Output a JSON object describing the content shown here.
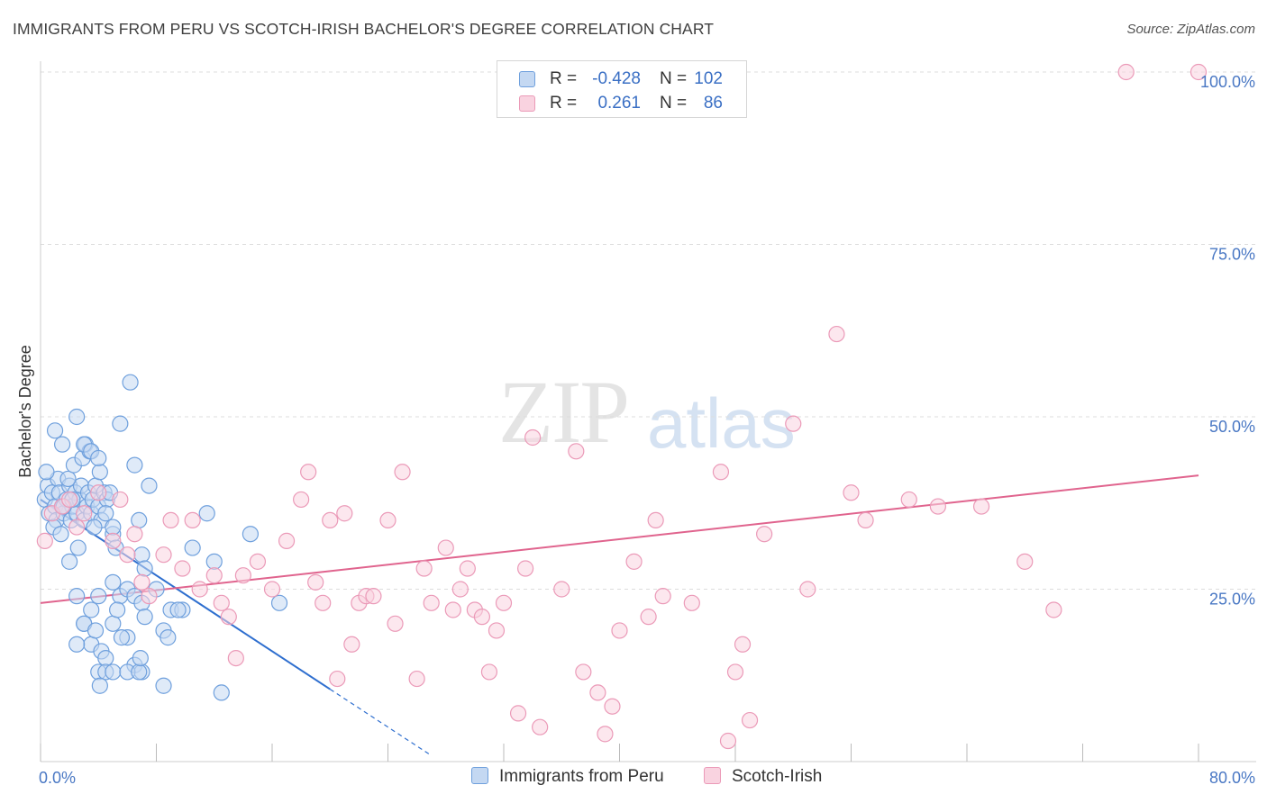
{
  "title": "IMMIGRANTS FROM PERU VS SCOTCH-IRISH BACHELOR'S DEGREE CORRELATION CHART",
  "source": "Source: ZipAtlas.com",
  "watermark": {
    "zip": "ZIP",
    "atlas": "atlas"
  },
  "colors": {
    "peru": "#6fa0dd",
    "peru_fill": "#c4d8f2",
    "peru_line": "#2f6fcf",
    "scotch": "#eb9ab8",
    "scotch_fill": "#f9d3e0",
    "scotch_line": "#e0648e",
    "tick": "#4a78c4",
    "grid": "#dddddd"
  },
  "legend": {
    "rows": [
      {
        "r_label": "R =",
        "r_value": "-0.428",
        "n_label": "N =",
        "n_value": "102"
      },
      {
        "r_label": "R =",
        "r_value": "0.261",
        "n_label": "N =",
        "n_value": "86"
      }
    ]
  },
  "bottom_legend": {
    "peru": "Immigrants from Peru",
    "scotch": "Scotch-Irish"
  },
  "chart_data": {
    "type": "scatter",
    "title": "IMMIGRANTS FROM PERU VS SCOTCH-IRISH BACHELOR'S DEGREE CORRELATION CHART",
    "xlabel": "",
    "ylabel": "Bachelor's Degree",
    "xlim": [
      0,
      80
    ],
    "ylim": [
      0,
      100
    ],
    "x_tick_labels": [
      {
        "value": 0,
        "label": "0.0%"
      },
      {
        "value": 80,
        "label": "80.0%"
      }
    ],
    "y_tick_labels": [
      {
        "value": 25,
        "label": "25.0%"
      },
      {
        "value": 50,
        "label": "50.0%"
      },
      {
        "value": 75,
        "label": "75.0%"
      },
      {
        "value": 100,
        "label": "100.0%"
      }
    ],
    "grid": true,
    "legend_position": "top-center",
    "series": [
      {
        "name": "Immigrants from Peru",
        "color": "#6fa0dd",
        "trend": {
          "x0": 0,
          "y0": 38,
          "x1": 20,
          "y1": 10.5,
          "dash_to_x": 27
        },
        "points": [
          [
            0.3,
            38
          ],
          [
            0.5,
            40
          ],
          [
            0.6,
            36
          ],
          [
            0.8,
            39
          ],
          [
            1.0,
            37
          ],
          [
            1.1,
            35
          ],
          [
            1.2,
            41
          ],
          [
            1.3,
            39
          ],
          [
            1.5,
            37
          ],
          [
            1.6,
            36
          ],
          [
            1.8,
            38
          ],
          [
            2.0,
            40
          ],
          [
            2.1,
            35
          ],
          [
            2.2,
            37
          ],
          [
            2.4,
            39
          ],
          [
            2.5,
            36
          ],
          [
            2.7,
            38
          ],
          [
            2.8,
            40
          ],
          [
            3.0,
            35
          ],
          [
            3.2,
            37
          ],
          [
            3.3,
            39
          ],
          [
            3.5,
            36
          ],
          [
            3.6,
            38
          ],
          [
            3.8,
            40
          ],
          [
            4.0,
            37
          ],
          [
            4.2,
            35
          ],
          [
            4.4,
            39
          ],
          [
            4.6,
            38
          ],
          [
            0.4,
            42
          ],
          [
            0.9,
            34
          ],
          [
            1.4,
            33
          ],
          [
            1.9,
            41
          ],
          [
            2.3,
            43
          ],
          [
            2.6,
            31
          ],
          [
            2.9,
            44
          ],
          [
            3.1,
            46
          ],
          [
            3.4,
            45
          ],
          [
            3.7,
            34
          ],
          [
            4.1,
            42
          ],
          [
            4.5,
            36
          ],
          [
            4.8,
            39
          ],
          [
            5.0,
            33
          ],
          [
            1.0,
            48
          ],
          [
            1.5,
            46
          ],
          [
            2.5,
            50
          ],
          [
            3.0,
            46
          ],
          [
            3.5,
            45
          ],
          [
            4.0,
            44
          ],
          [
            5.5,
            49
          ],
          [
            6.2,
            55
          ],
          [
            6.5,
            43
          ],
          [
            7.5,
            40
          ],
          [
            5.0,
            34
          ],
          [
            5.2,
            31
          ],
          [
            6.8,
            35
          ],
          [
            7.0,
            30
          ],
          [
            7.2,
            28
          ],
          [
            8.0,
            25
          ],
          [
            9.0,
            22
          ],
          [
            9.8,
            22
          ],
          [
            10.5,
            31
          ],
          [
            12.0,
            29
          ],
          [
            14.5,
            33
          ],
          [
            11.5,
            36
          ],
          [
            5.0,
            26
          ],
          [
            5.5,
            24
          ],
          [
            6.0,
            25
          ],
          [
            6.5,
            24
          ],
          [
            7.0,
            23
          ],
          [
            4.0,
            24
          ],
          [
            3.5,
            22
          ],
          [
            3.0,
            20
          ],
          [
            2.5,
            24
          ],
          [
            2.0,
            29
          ],
          [
            3.5,
            17
          ],
          [
            4.2,
            16
          ],
          [
            4.5,
            15
          ],
          [
            5.0,
            20
          ],
          [
            5.3,
            22
          ],
          [
            6.0,
            18
          ],
          [
            6.5,
            14
          ],
          [
            7.0,
            13
          ],
          [
            7.2,
            21
          ],
          [
            8.5,
            19
          ],
          [
            8.8,
            18
          ],
          [
            9.5,
            22
          ],
          [
            4.0,
            13
          ],
          [
            4.5,
            13
          ],
          [
            5.0,
            13
          ],
          [
            6.0,
            13
          ],
          [
            6.8,
            13
          ],
          [
            4.1,
            11
          ],
          [
            8.5,
            11
          ],
          [
            12.5,
            10
          ],
          [
            16.5,
            23
          ],
          [
            3.0,
            20
          ],
          [
            2.5,
            17
          ],
          [
            3.8,
            19
          ],
          [
            5.6,
            18
          ],
          [
            6.9,
            15
          ],
          [
            1.6,
            37
          ],
          [
            2.2,
            38
          ]
        ]
      },
      {
        "name": "Scotch-Irish",
        "color": "#eb9ab8",
        "trend": {
          "x0": 0,
          "y0": 23,
          "x1": 80,
          "y1": 41.5
        },
        "points": [
          [
            0.3,
            32
          ],
          [
            0.8,
            36
          ],
          [
            1.5,
            37
          ],
          [
            2.0,
            38
          ],
          [
            3.0,
            36
          ],
          [
            4.0,
            39
          ],
          [
            5.0,
            32
          ],
          [
            5.5,
            38
          ],
          [
            6.0,
            30
          ],
          [
            6.5,
            33
          ],
          [
            7.0,
            26
          ],
          [
            7.5,
            24
          ],
          [
            8.5,
            30
          ],
          [
            9.0,
            35
          ],
          [
            9.8,
            28
          ],
          [
            10.5,
            35
          ],
          [
            11.0,
            25
          ],
          [
            12.0,
            27
          ],
          [
            12.5,
            23
          ],
          [
            13.0,
            21
          ],
          [
            13.5,
            15
          ],
          [
            14.0,
            27
          ],
          [
            15.0,
            29
          ],
          [
            16.0,
            25
          ],
          [
            17.0,
            32
          ],
          [
            18.0,
            38
          ],
          [
            18.5,
            42
          ],
          [
            19.0,
            26
          ],
          [
            19.5,
            23
          ],
          [
            20.0,
            35
          ],
          [
            20.5,
            12
          ],
          [
            21.0,
            36
          ],
          [
            21.5,
            17
          ],
          [
            22.0,
            23
          ],
          [
            22.5,
            24
          ],
          [
            23.0,
            24
          ],
          [
            24.0,
            35
          ],
          [
            24.5,
            20
          ],
          [
            25.0,
            42
          ],
          [
            26.0,
            12
          ],
          [
            26.5,
            28
          ],
          [
            27.0,
            23
          ],
          [
            28.0,
            31
          ],
          [
            28.5,
            22
          ],
          [
            29.0,
            25
          ],
          [
            29.5,
            28
          ],
          [
            30.0,
            22
          ],
          [
            30.5,
            21
          ],
          [
            31.0,
            13
          ],
          [
            31.5,
            19
          ],
          [
            32.0,
            23
          ],
          [
            33.0,
            7
          ],
          [
            33.5,
            28
          ],
          [
            34.0,
            47
          ],
          [
            34.5,
            5
          ],
          [
            36.0,
            25
          ],
          [
            37.0,
            45
          ],
          [
            37.5,
            13
          ],
          [
            38.5,
            10
          ],
          [
            39.0,
            4
          ],
          [
            39.5,
            8
          ],
          [
            40.0,
            19
          ],
          [
            41.0,
            29
          ],
          [
            42.0,
            21
          ],
          [
            42.5,
            35
          ],
          [
            43.0,
            24
          ],
          [
            45.0,
            23
          ],
          [
            47.0,
            42
          ],
          [
            47.5,
            3
          ],
          [
            48.0,
            13
          ],
          [
            48.5,
            17
          ],
          [
            49.0,
            6
          ],
          [
            50.0,
            33
          ],
          [
            52.0,
            49
          ],
          [
            53.0,
            25
          ],
          [
            55.0,
            62
          ],
          [
            56.0,
            39
          ],
          [
            57.0,
            35
          ],
          [
            60.0,
            38
          ],
          [
            62.0,
            37
          ],
          [
            65.0,
            37
          ],
          [
            68.0,
            29
          ],
          [
            70.0,
            22
          ],
          [
            75.0,
            100
          ],
          [
            80.0,
            100
          ],
          [
            2.5,
            34
          ]
        ]
      }
    ]
  }
}
